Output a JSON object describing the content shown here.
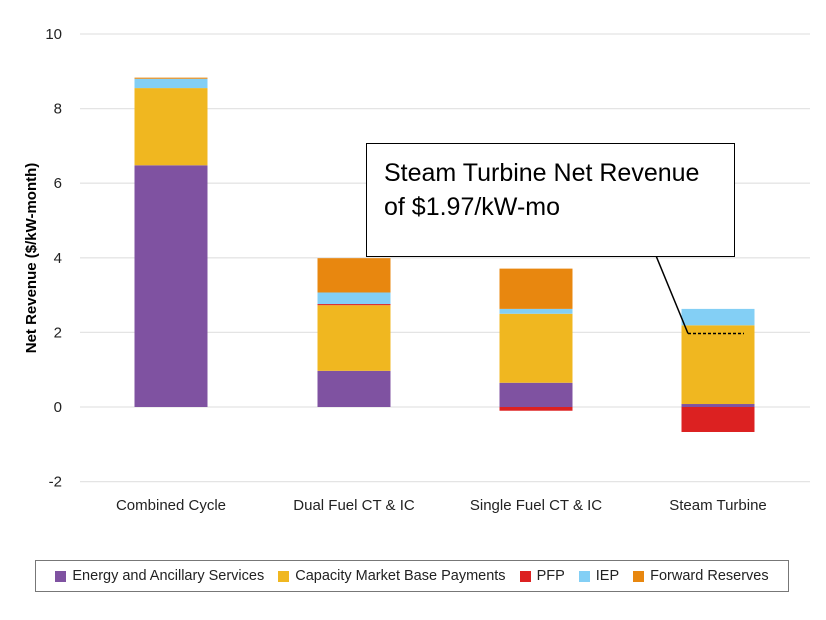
{
  "chart_data": {
    "type": "bar",
    "stacked": true,
    "title": "",
    "xlabel": "",
    "ylabel": "Net Revenue ($/kW-month)",
    "ylim": [
      -2,
      10
    ],
    "yticks": [
      "10",
      "8",
      "6",
      "4",
      "2",
      "0",
      "-2"
    ],
    "ytick_values": [
      10,
      8,
      6,
      4,
      2,
      0,
      -2
    ],
    "grid": true,
    "categories": [
      "Combined Cycle",
      "Dual Fuel CT & IC",
      "Single Fuel CT & IC",
      "Steam Turbine"
    ],
    "series": [
      {
        "name": "Energy and Ancillary Services",
        "color": "#7F52A1",
        "values": [
          6.48,
          0.97,
          0.65,
          0.08
        ]
      },
      {
        "name": "Capacity Market Base Payments",
        "color": "#F0B720",
        "values": [
          2.07,
          1.76,
          1.85,
          2.11
        ]
      },
      {
        "name": "PFP",
        "color": "#DC2121",
        "values": [
          0.0,
          0.03,
          -0.1,
          -0.67
        ]
      },
      {
        "name": "IEP",
        "color": "#83CFF5",
        "values": [
          0.25,
          0.31,
          0.13,
          0.44
        ]
      },
      {
        "name": "Forward Reserves",
        "color": "#E8870F",
        "values": [
          0.03,
          0.92,
          1.08,
          0.0
        ]
      }
    ],
    "legend_position": "bottom",
    "annotation": {
      "line1": "Steam Turbine Net Revenue",
      "line2": "of $1.97/kW-mo",
      "target_category": "Steam Turbine",
      "target_value": 1.97
    }
  }
}
